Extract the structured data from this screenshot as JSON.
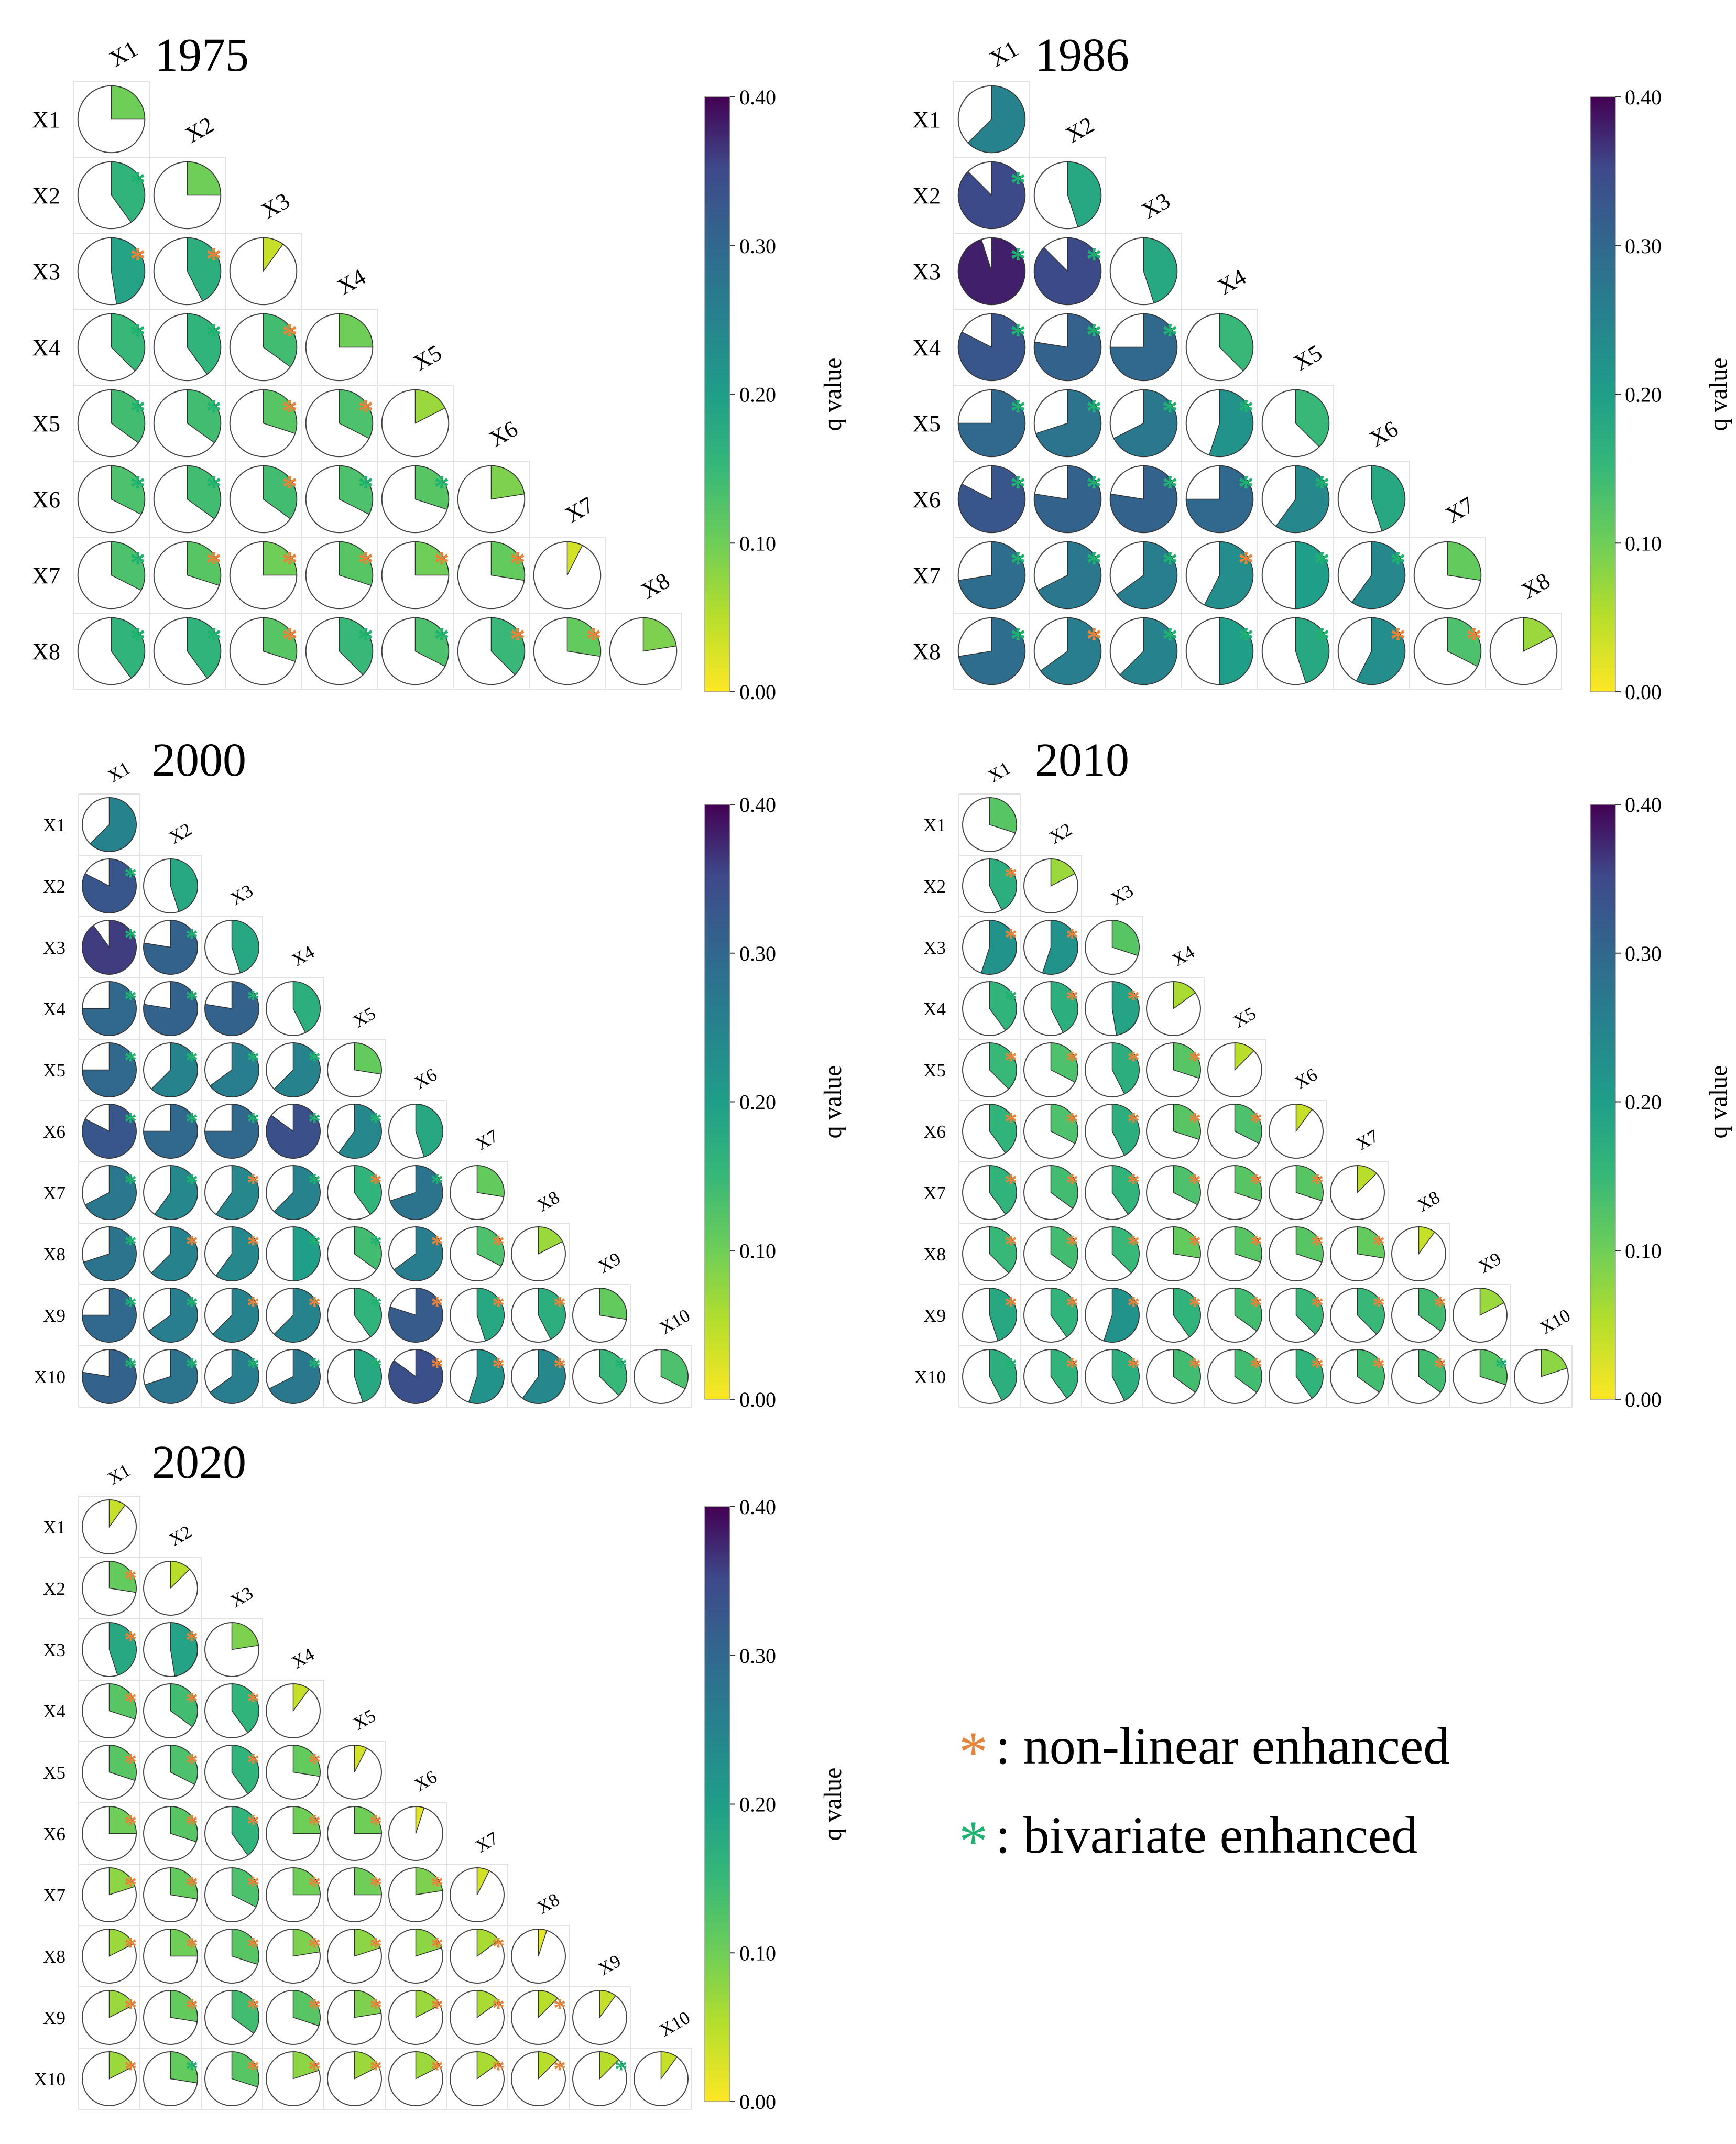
{
  "legend": {
    "nonlinear_symbol": "*",
    "nonlinear_label": ": non-linear enhanced",
    "nonlinear_color": "#e8833a",
    "bivariate_symbol": "*",
    "bivariate_label": ": bivariate enhanced",
    "bivariate_color": "#1db36e"
  },
  "colorbar": {
    "label": "q value",
    "ticks": [
      "0.00",
      "0.10",
      "0.20",
      "0.30",
      "0.40"
    ],
    "colormap": "viridis_r",
    "range": [
      0,
      0.4
    ]
  },
  "chart_data": [
    {
      "type": "pie-matrix",
      "title": "1975",
      "variables": [
        "X1",
        "X2",
        "X3",
        "X4",
        "X5",
        "X6",
        "X7",
        "X8"
      ],
      "q": [
        [
          0.1
        ],
        [
          0.16,
          0.1
        ],
        [
          0.19,
          0.17,
          0.04
        ],
        [
          0.15,
          0.16,
          0.14,
          0.1
        ],
        [
          0.14,
          0.14,
          0.12,
          0.13,
          0.07
        ],
        [
          0.13,
          0.14,
          0.14,
          0.13,
          0.12,
          0.09
        ],
        [
          0.13,
          0.12,
          0.1,
          0.12,
          0.1,
          0.11,
          0.03
        ],
        [
          0.16,
          0.16,
          0.12,
          0.15,
          0.13,
          0.15,
          0.11,
          0.09
        ]
      ],
      "interaction": [
        [
          ""
        ],
        [
          "bivariate",
          ""
        ],
        [
          "non-linear",
          "non-linear",
          ""
        ],
        [
          "bivariate",
          "bivariate",
          "non-linear",
          ""
        ],
        [
          "bivariate",
          "bivariate",
          "non-linear",
          "non-linear",
          ""
        ],
        [
          "bivariate",
          "bivariate",
          "non-linear",
          "bivariate",
          "bivariate",
          ""
        ],
        [
          "bivariate",
          "non-linear",
          "non-linear",
          "non-linear",
          "non-linear",
          "non-linear",
          ""
        ],
        [
          "bivariate",
          "bivariate",
          "non-linear",
          "bivariate",
          "bivariate",
          "non-linear",
          "non-linear",
          ""
        ]
      ]
    },
    {
      "type": "pie-matrix",
      "title": "1986",
      "variables": [
        "X1",
        "X2",
        "X3",
        "X4",
        "X5",
        "X6",
        "X7",
        "X8"
      ],
      "q": [
        [
          0.25
        ],
        [
          0.35,
          0.18
        ],
        [
          0.38,
          0.35,
          0.18
        ],
        [
          0.33,
          0.31,
          0.3,
          0.15
        ],
        [
          0.3,
          0.28,
          0.27,
          0.22,
          0.15
        ],
        [
          0.33,
          0.31,
          0.31,
          0.3,
          0.24,
          0.18
        ],
        [
          0.29,
          0.27,
          0.26,
          0.23,
          0.2,
          0.24,
          0.11
        ],
        [
          0.29,
          0.26,
          0.25,
          0.2,
          0.18,
          0.23,
          0.13,
          0.07
        ]
      ],
      "interaction": [
        [
          ""
        ],
        [
          "bivariate",
          ""
        ],
        [
          "bivariate",
          "bivariate",
          ""
        ],
        [
          "bivariate",
          "bivariate",
          "bivariate",
          ""
        ],
        [
          "bivariate",
          "bivariate",
          "bivariate",
          "bivariate",
          ""
        ],
        [
          "bivariate",
          "bivariate",
          "bivariate",
          "bivariate",
          "bivariate",
          ""
        ],
        [
          "bivariate",
          "bivariate",
          "bivariate",
          "non-linear",
          "bivariate",
          "bivariate",
          ""
        ],
        [
          "bivariate",
          "non-linear",
          "bivariate",
          "bivariate",
          "bivariate",
          "non-linear",
          "non-linear",
          ""
        ]
      ]
    },
    {
      "type": "pie-matrix",
      "title": "2000",
      "variables": [
        "X1",
        "X2",
        "X3",
        "X4",
        "X5",
        "X6",
        "X7",
        "X8",
        "X9",
        "X10"
      ],
      "q": [
        [
          0.25
        ],
        [
          0.33,
          0.18
        ],
        [
          0.36,
          0.31,
          0.18
        ],
        [
          0.3,
          0.31,
          0.31,
          0.17
        ],
        [
          0.3,
          0.25,
          0.26,
          0.25,
          0.11
        ],
        [
          0.33,
          0.3,
          0.3,
          0.34,
          0.24,
          0.18
        ],
        [
          0.27,
          0.24,
          0.24,
          0.25,
          0.16,
          0.28,
          0.11
        ],
        [
          0.28,
          0.25,
          0.24,
          0.2,
          0.14,
          0.26,
          0.13,
          0.07
        ],
        [
          0.3,
          0.26,
          0.25,
          0.25,
          0.16,
          0.32,
          0.18,
          0.17,
          0.11
        ],
        [
          0.31,
          0.28,
          0.26,
          0.27,
          0.18,
          0.34,
          0.22,
          0.24,
          0.15,
          0.13
        ]
      ],
      "interaction": [
        [
          ""
        ],
        [
          "bivariate",
          ""
        ],
        [
          "bivariate",
          "bivariate",
          ""
        ],
        [
          "bivariate",
          "bivariate",
          "bivariate",
          ""
        ],
        [
          "bivariate",
          "bivariate",
          "bivariate",
          "bivariate",
          ""
        ],
        [
          "bivariate",
          "bivariate",
          "bivariate",
          "bivariate",
          "bivariate",
          ""
        ],
        [
          "bivariate",
          "bivariate",
          "non-linear",
          "bivariate",
          "non-linear",
          "bivariate",
          ""
        ],
        [
          "bivariate",
          "non-linear",
          "non-linear",
          "bivariate",
          "bivariate",
          "non-linear",
          "non-linear",
          ""
        ],
        [
          "bivariate",
          "bivariate",
          "non-linear",
          "non-linear",
          "bivariate",
          "non-linear",
          "non-linear",
          "non-linear",
          ""
        ],
        [
          "bivariate",
          "bivariate",
          "bivariate",
          "bivariate",
          "bivariate",
          "non-linear",
          "non-linear",
          "non-linear",
          "bivariate",
          ""
        ]
      ]
    },
    {
      "type": "pie-matrix",
      "title": "2010",
      "variables": [
        "X1",
        "X2",
        "X3",
        "X4",
        "X5",
        "X6",
        "X7",
        "X8",
        "X9",
        "X10"
      ],
      "q": [
        [
          0.12
        ],
        [
          0.17,
          0.07
        ],
        [
          0.22,
          0.22,
          0.12
        ],
        [
          0.16,
          0.17,
          0.19,
          0.06
        ],
        [
          0.15,
          0.13,
          0.17,
          0.12,
          0.05
        ],
        [
          0.16,
          0.13,
          0.17,
          0.12,
          0.13,
          0.04
        ],
        [
          0.16,
          0.14,
          0.16,
          0.13,
          0.12,
          0.12,
          0.05
        ],
        [
          0.15,
          0.14,
          0.15,
          0.11,
          0.12,
          0.12,
          0.11,
          0.04
        ],
        [
          0.18,
          0.16,
          0.22,
          0.16,
          0.14,
          0.15,
          0.15,
          0.14,
          0.07
        ],
        [
          0.17,
          0.16,
          0.17,
          0.14,
          0.14,
          0.16,
          0.14,
          0.14,
          0.12,
          0.08
        ]
      ],
      "interaction": [
        [
          ""
        ],
        [
          "non-linear",
          ""
        ],
        [
          "non-linear",
          "non-linear",
          ""
        ],
        [
          "bivariate",
          "non-linear",
          "non-linear",
          ""
        ],
        [
          "non-linear",
          "non-linear",
          "non-linear",
          "non-linear",
          ""
        ],
        [
          "non-linear",
          "non-linear",
          "non-linear",
          "non-linear",
          "non-linear",
          ""
        ],
        [
          "non-linear",
          "non-linear",
          "non-linear",
          "non-linear",
          "non-linear",
          "non-linear",
          ""
        ],
        [
          "non-linear",
          "non-linear",
          "non-linear",
          "non-linear",
          "non-linear",
          "non-linear",
          "non-linear",
          ""
        ],
        [
          "non-linear",
          "non-linear",
          "non-linear",
          "non-linear",
          "non-linear",
          "non-linear",
          "non-linear",
          "non-linear",
          ""
        ],
        [
          "bivariate",
          "non-linear",
          "non-linear",
          "non-linear",
          "non-linear",
          "non-linear",
          "non-linear",
          "non-linear",
          "bivariate",
          ""
        ]
      ]
    },
    {
      "type": "pie-matrix",
      "title": "2020",
      "variables": [
        "X1",
        "X2",
        "X3",
        "X4",
        "X5",
        "X6",
        "X7",
        "X8",
        "X9",
        "X10"
      ],
      "q": [
        [
          0.04
        ],
        [
          0.11,
          0.05
        ],
        [
          0.18,
          0.19,
          0.09
        ],
        [
          0.12,
          0.14,
          0.16,
          0.04
        ],
        [
          0.12,
          0.13,
          0.16,
          0.11,
          0.03
        ],
        [
          0.1,
          0.12,
          0.16,
          0.1,
          0.1,
          0.02
        ],
        [
          0.08,
          0.11,
          0.13,
          0.1,
          0.1,
          0.09,
          0.03
        ],
        [
          0.07,
          0.1,
          0.12,
          0.09,
          0.08,
          0.08,
          0.06,
          0.02
        ],
        [
          0.07,
          0.11,
          0.14,
          0.12,
          0.09,
          0.07,
          0.06,
          0.05,
          0.04
        ],
        [
          0.07,
          0.11,
          0.12,
          0.08,
          0.07,
          0.07,
          0.06,
          0.05,
          0.05,
          0.04
        ]
      ],
      "interaction": [
        [
          ""
        ],
        [
          "non-linear",
          ""
        ],
        [
          "non-linear",
          "non-linear",
          ""
        ],
        [
          "non-linear",
          "non-linear",
          "non-linear",
          ""
        ],
        [
          "non-linear",
          "non-linear",
          "non-linear",
          "non-linear",
          ""
        ],
        [
          "non-linear",
          "non-linear",
          "non-linear",
          "non-linear",
          "non-linear",
          ""
        ],
        [
          "non-linear",
          "non-linear",
          "non-linear",
          "non-linear",
          "non-linear",
          "non-linear",
          ""
        ],
        [
          "non-linear",
          "non-linear",
          "non-linear",
          "non-linear",
          "non-linear",
          "non-linear",
          "non-linear",
          ""
        ],
        [
          "non-linear",
          "non-linear",
          "non-linear",
          "non-linear",
          "non-linear",
          "non-linear",
          "non-linear",
          "non-linear",
          ""
        ],
        [
          "non-linear",
          "bivariate",
          "non-linear",
          "non-linear",
          "non-linear",
          "non-linear",
          "non-linear",
          "non-linear",
          "bivariate",
          ""
        ]
      ]
    }
  ]
}
